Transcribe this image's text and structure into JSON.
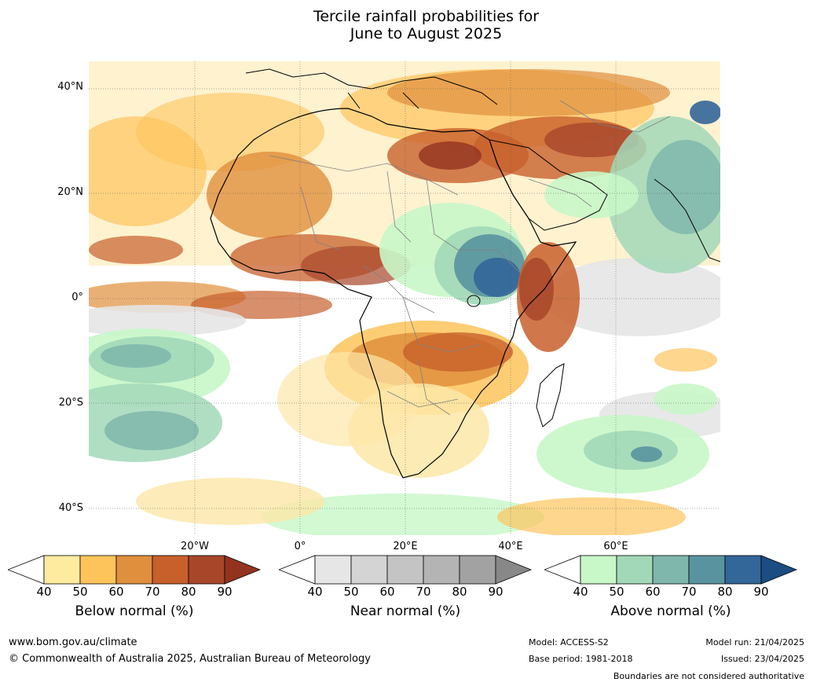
{
  "title": {
    "line1": "Tercile rainfall probabilities for",
    "line2": "June to August 2025"
  },
  "map": {
    "lat_labels": [
      "40°N",
      "20°N",
      "0°",
      "20°S",
      "40°S"
    ],
    "lon_labels": [
      "20°W",
      "0°",
      "20°E",
      "40°E",
      "60°E"
    ],
    "colors": {
      "ocean_white": "#ffffff",
      "land_outline": "#000000",
      "borders": "#808080"
    }
  },
  "colorbars": [
    {
      "name": "below",
      "label": "Below normal (%)",
      "ticks": [
        "40",
        "50",
        "60",
        "70",
        "80",
        "90"
      ],
      "colors": [
        "#ffffff",
        "#ffeba0",
        "#fdc45c",
        "#e08f3c",
        "#c8602c",
        "#a8462a",
        "#93331f"
      ]
    },
    {
      "name": "near",
      "label": "Near normal (%)",
      "ticks": [
        "40",
        "50",
        "60",
        "70",
        "80",
        "90"
      ],
      "colors": [
        "#ffffff",
        "#e6e6e6",
        "#d4d4d4",
        "#c4c4c4",
        "#b4b4b4",
        "#a2a2a2",
        "#888888"
      ]
    },
    {
      "name": "above",
      "label": "Above normal (%)",
      "ticks": [
        "40",
        "50",
        "60",
        "70",
        "80",
        "90"
      ],
      "colors": [
        "#ffffff",
        "#c8f7c8",
        "#a2d8b8",
        "#7fb7ac",
        "#5a93a0",
        "#336699",
        "#1b4d82"
      ]
    }
  ],
  "footer": {
    "website": "www.bom.gov.au/climate",
    "copyright": "© Commonwealth of Australia 2025, Australian Bureau of Meteorology",
    "model": "Model: ACCESS-S2",
    "base_period": "Base period: 1981-2018",
    "model_run": "Model run: 21/04/2025",
    "issued": "Issued: 23/04/2025",
    "disclaimer": "Boundaries are not considered authoritative"
  }
}
